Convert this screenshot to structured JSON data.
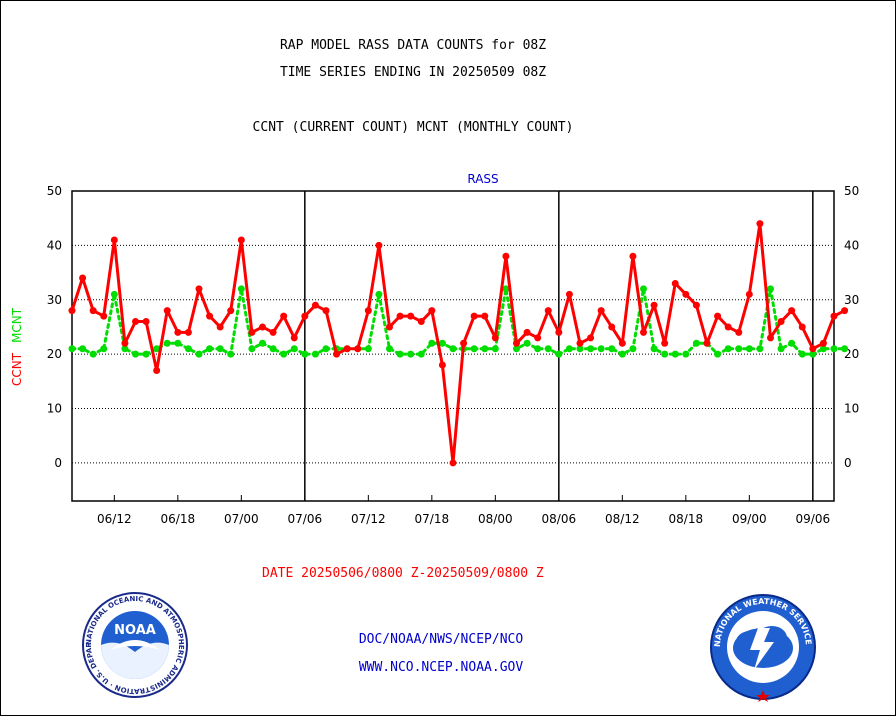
{
  "title_line1": "RAP MODEL RASS DATA COUNTS for 08Z",
  "title_line2": "TIME SERIES ENDING IN 20250509 08Z",
  "subtitle": "CCNT (CURRENT COUNT) MCNT (MONTHLY COUNT)",
  "date_range": "DATE 20250506/0800 Z-20250509/0800 Z",
  "footer_line1": "DOC/NOAA/NWS/NCEP/NCO",
  "footer_line2": "WWW.NCO.NCEP.NOAA.GOV",
  "logos": {
    "noaa": {
      "text": "NOAA",
      "ring_text": "NATIONAL OCEANIC AND ATMOSPHERIC ADMINISTRATION · U.S. DEPARTMENT OF COMMERCE"
    },
    "nws": {
      "ring_text": "NATIONAL WEATHER SERVICE"
    }
  },
  "colors": {
    "ccnt": "#ff0000",
    "mcnt": "#00dd00",
    "label_blue": "#0000cc",
    "date_red": "#ff0000"
  },
  "chart_data": {
    "type": "line",
    "title": "RASS",
    "ylabel_left": [
      "CCNT",
      "MCNT"
    ],
    "ylim": [
      -7,
      50
    ],
    "yticks": [
      0,
      10,
      20,
      30,
      40,
      50
    ],
    "ytick_labels": [
      "0",
      "10",
      "20",
      "30",
      "40",
      "50"
    ],
    "xlim": [
      0,
      72
    ],
    "xticks": [
      {
        "x": 4,
        "label": "06/12"
      },
      {
        "x": 10,
        "label": "06/18"
      },
      {
        "x": 16,
        "label": "07/00"
      },
      {
        "x": 22,
        "label": "07/06"
      },
      {
        "x": 28,
        "label": "07/12"
      },
      {
        "x": 34,
        "label": "07/18"
      },
      {
        "x": 40,
        "label": "08/00"
      },
      {
        "x": 46,
        "label": "08/06"
      },
      {
        "x": 52,
        "label": "08/12"
      },
      {
        "x": 58,
        "label": "08/18"
      },
      {
        "x": 64,
        "label": "09/00"
      },
      {
        "x": 70,
        "label": "09/06"
      }
    ],
    "day_boundaries": [
      22,
      46,
      70
    ],
    "grid": true,
    "series": [
      {
        "name": "CCNT",
        "color": "#ff0000",
        "style": "solid",
        "values": [
          28,
          34,
          28,
          27,
          41,
          22,
          26,
          26,
          17,
          28,
          24,
          24,
          32,
          27,
          25,
          28,
          41,
          24,
          25,
          24,
          27,
          23,
          27,
          29,
          28,
          20,
          21,
          21,
          28,
          40,
          25,
          27,
          27,
          26,
          28,
          18,
          0,
          22,
          27,
          27,
          23,
          38,
          22,
          24,
          23,
          28,
          24,
          31,
          22,
          23,
          28,
          25,
          22,
          38,
          24,
          29,
          22,
          33,
          31,
          29,
          22,
          27,
          25,
          24,
          31,
          44,
          23,
          26,
          28,
          25,
          21,
          22,
          27,
          28
        ]
      },
      {
        "name": "MCNT",
        "color": "#00dd00",
        "style": "dotted",
        "values": [
          21,
          21,
          20,
          21,
          31,
          21,
          20,
          20,
          21,
          22,
          22,
          21,
          20,
          21,
          21,
          20,
          32,
          21,
          22,
          21,
          20,
          21,
          20,
          20,
          21,
          21,
          21,
          21,
          21,
          31,
          21,
          20,
          20,
          20,
          22,
          22,
          21,
          21,
          21,
          21,
          21,
          32,
          21,
          22,
          21,
          21,
          20,
          21,
          21,
          21,
          21,
          21,
          20,
          21,
          32,
          21,
          20,
          20,
          20,
          22,
          22,
          20,
          21,
          21,
          21,
          21,
          32,
          21,
          22,
          20,
          20,
          21,
          21,
          21
        ]
      }
    ]
  }
}
